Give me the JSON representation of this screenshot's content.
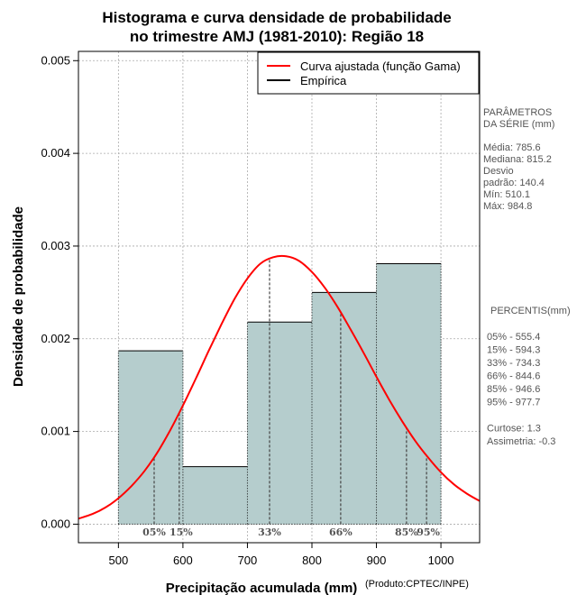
{
  "chart_data": {
    "type": "histogram",
    "title_line1": "Histograma e curva densidade de probabilidade",
    "title_line2": "no trimestre AMJ (1981-2010): Região 18",
    "xlabel": "Precipitação acumulada (mm)",
    "ylabel": "Densidade de probabilidade",
    "credit": "(Produto:CPTEC/INPE)",
    "xlim": [
      438,
      1060
    ],
    "ylim": [
      -0.0002,
      0.0051
    ],
    "x_ticks": [
      500,
      600,
      700,
      800,
      900,
      1000
    ],
    "x_tick_labels": [
      "500",
      "600",
      "700",
      "800",
      "900",
      "1000"
    ],
    "y_ticks": [
      0,
      0.001,
      0.002,
      0.003,
      0.004,
      0.005
    ],
    "y_tick_labels": [
      "0.000",
      "0.001",
      "0.002",
      "0.003",
      "0.004",
      "0.005"
    ],
    "bins": [
      {
        "start": 500,
        "end": 600,
        "density": 0.00187
      },
      {
        "start": 600,
        "end": 700,
        "density": 0.00062
      },
      {
        "start": 700,
        "end": 800,
        "density": 0.00218
      },
      {
        "start": 800,
        "end": 900,
        "density": 0.0025
      },
      {
        "start": 900,
        "end": 1000,
        "density": 0.00281
      }
    ],
    "gamma_curve": {
      "x": [
        438,
        460,
        480,
        500,
        520,
        540,
        560,
        580,
        600,
        620,
        640,
        660,
        680,
        700,
        720,
        740,
        760,
        780,
        800,
        820,
        840,
        860,
        880,
        900,
        920,
        940,
        960,
        980,
        1000,
        1020,
        1040,
        1060
      ],
      "y": [
        6e-05,
        0.00011,
        0.00018,
        0.00028,
        0.00041,
        0.00057,
        0.00077,
        0.00101,
        0.00128,
        0.00157,
        0.00187,
        0.00216,
        0.00243,
        0.00265,
        0.00281,
        0.00288,
        0.00289,
        0.00284,
        0.00272,
        0.00255,
        0.00234,
        0.0021,
        0.00185,
        0.00159,
        0.00134,
        0.00111,
        0.0009,
        0.00072,
        0.00056,
        0.00043,
        0.00033,
        0.00025
      ]
    },
    "percentile_markers": [
      {
        "label": "05%",
        "value": 555.4
      },
      {
        "label": "15%",
        "value": 594.3
      },
      {
        "label": "33%",
        "value": 734.3
      },
      {
        "label": "66%",
        "value": 844.6
      },
      {
        "label": "85%",
        "value": 946.6
      },
      {
        "label": "95%",
        "value": 977.7
      }
    ],
    "legend": [
      {
        "label": "Curva ajustada (função Gama)",
        "color": "#ff0000"
      },
      {
        "label": "Empírica",
        "color": "#000000"
      }
    ],
    "colors": {
      "bar_fill": "#b5cdcd",
      "curve": "#ff0000",
      "grid": "#aaaaaa"
    }
  },
  "side_panel": {
    "params_lines": [
      "PARÂMETROS",
      " DA SÉRIE (mm)",
      "",
      "Média:  785.6",
      "Mediana:  815.2",
      "Desvio",
      "padrão:  140.4",
      "Mín:  510.1",
      "Máx:  984.8"
    ],
    "percentis_lines": [
      "PERCENTIS(mm)",
      "",
      "05% -  555.4",
      "15% -  594.3",
      "33% -  734.3",
      "66% -  844.6",
      "85% -  946.6",
      "95% -  977.7",
      "",
      "Curtose:  1.3",
      "Assimetria:  -0.3"
    ]
  }
}
